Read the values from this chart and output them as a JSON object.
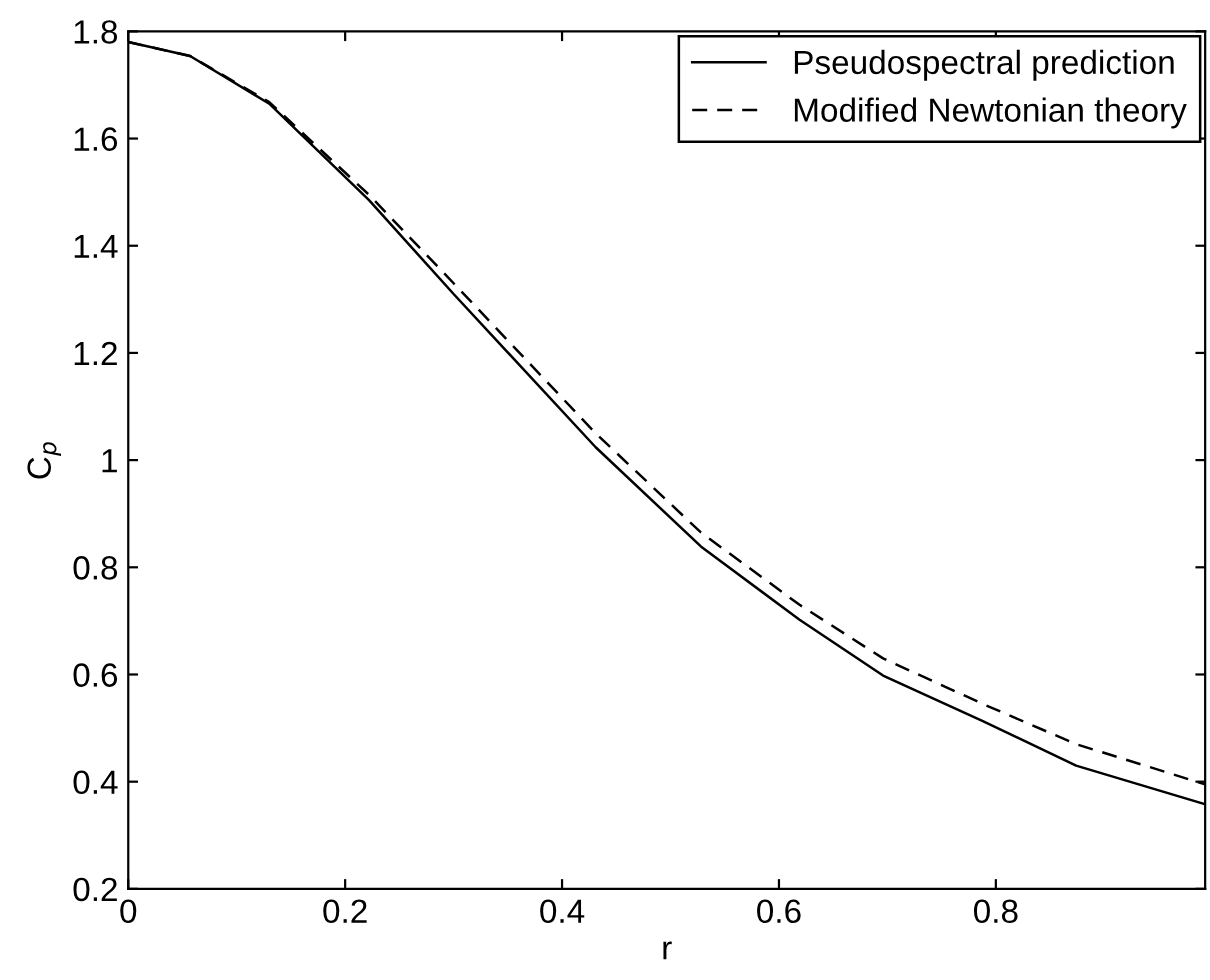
{
  "chart_data": {
    "type": "line",
    "xlabel": "r",
    "ylabel": "C$_{p}$",
    "xlim": [
      0,
      0.993
    ],
    "ylim": [
      0.2,
      1.8
    ],
    "xticks": [
      0,
      0.2,
      0.4,
      0.6,
      0.8
    ],
    "yticks": [
      0.2,
      0.4,
      0.6,
      0.8,
      1,
      1.2,
      1.4,
      1.6,
      1.8
    ],
    "grid": false,
    "legend": "top right",
    "series": [
      {
        "name": "Pseudospectral prediction",
        "color": "#000000",
        "line_style": "solid",
        "x": [
          0,
          0.057,
          0.13,
          0.222,
          0.3,
          0.431,
          0.528,
          0.619,
          0.696,
          0.788,
          0.874,
          0.993
        ],
        "values": [
          1.78,
          1.754,
          1.665,
          1.485,
          1.31,
          1.024,
          0.839,
          0.702,
          0.598,
          0.513,
          0.43,
          0.358
        ]
      },
      {
        "name": "Modified Newtonian theory",
        "color": "#000000",
        "line_style": "dashed",
        "x": [
          0,
          0.057,
          0.13,
          0.222,
          0.3,
          0.431,
          0.528,
          0.619,
          0.696,
          0.788,
          0.874,
          0.993
        ],
        "values": [
          1.78,
          1.754,
          1.668,
          1.495,
          1.33,
          1.05,
          0.865,
          0.73,
          0.63,
          0.545,
          0.47,
          0.395
        ]
      }
    ]
  }
}
